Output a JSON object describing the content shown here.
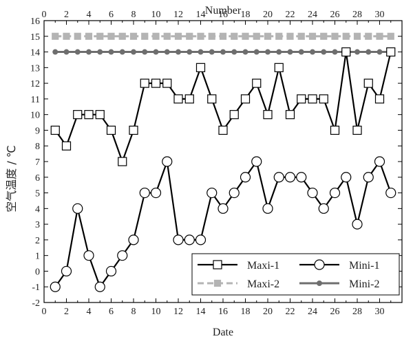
{
  "chart_data": {
    "type": "line",
    "top_axis_title": "Number",
    "xlabel": "Date",
    "ylabel": "空气温度 / ℃",
    "xlim": [
      0,
      32
    ],
    "ylim": [
      -2,
      16
    ],
    "x_ticks": [
      0,
      2,
      4,
      6,
      8,
      10,
      12,
      14,
      16,
      18,
      20,
      22,
      24,
      26,
      28,
      30
    ],
    "top_ticks": [
      0,
      2,
      4,
      6,
      8,
      10,
      12,
      14,
      16,
      18,
      20,
      22,
      24,
      26,
      28,
      30
    ],
    "y_ticks": [
      -2,
      -1,
      0,
      1,
      2,
      3,
      4,
      5,
      6,
      7,
      8,
      9,
      10,
      11,
      12,
      13,
      14,
      15,
      16
    ],
    "x": [
      1,
      2,
      3,
      4,
      5,
      6,
      7,
      8,
      9,
      10,
      11,
      12,
      13,
      14,
      15,
      16,
      17,
      18,
      19,
      20,
      21,
      22,
      23,
      24,
      25,
      26,
      27,
      28,
      29,
      30,
      31
    ],
    "series": [
      {
        "name": "Maxi-1",
        "values": [
          9,
          8,
          10,
          10,
          10,
          9,
          7,
          9,
          12,
          12,
          12,
          11,
          11,
          13,
          11,
          9,
          10,
          11,
          12,
          10,
          13,
          10,
          11,
          11,
          11,
          9,
          14,
          9,
          12,
          11,
          14
        ],
        "color": "#000000",
        "marker": "square"
      },
      {
        "name": "Mini-1",
        "values": [
          -1,
          0,
          4,
          1,
          -1,
          0,
          1,
          2,
          5,
          5,
          7,
          2,
          2,
          2,
          5,
          4,
          5,
          6,
          7,
          4,
          6,
          6,
          6,
          5,
          4,
          5,
          6,
          3,
          6,
          7,
          5
        ],
        "color": "#000000",
        "marker": "circle"
      },
      {
        "name": "Maxi-2",
        "values": [
          15,
          15,
          15,
          15,
          15,
          15,
          15,
          15,
          15,
          15,
          15,
          15,
          15,
          15,
          15,
          15,
          15,
          15,
          15,
          15,
          15,
          15,
          15,
          15,
          15,
          15,
          15,
          15,
          15,
          15,
          15
        ],
        "color": "#b4b4b4",
        "marker": "square"
      },
      {
        "name": "Mini-2",
        "values": [
          14,
          14,
          14,
          14,
          14,
          14,
          14,
          14,
          14,
          14,
          14,
          14,
          14,
          14,
          14,
          14,
          14,
          14,
          14,
          14,
          14,
          14,
          14,
          14,
          14,
          14,
          14,
          14,
          14,
          14,
          14
        ],
        "color": "#6e6e6e",
        "marker": "dot"
      }
    ],
    "legend": {
      "position": "bottom-right",
      "entries": [
        "Maxi-1",
        "Mini-1",
        "Maxi-2",
        "Mini-2"
      ]
    },
    "grid": false
  }
}
